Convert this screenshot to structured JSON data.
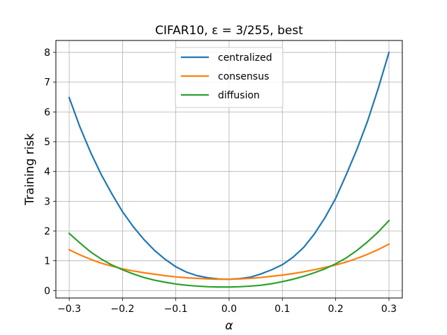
{
  "chart_data": {
    "type": "line",
    "title": "CIFAR10, ε = 3/255, best",
    "xlabel": "α",
    "ylabel": "Training risk",
    "xlim": [
      -0.325,
      0.325
    ],
    "ylim": [
      -0.25,
      8.4
    ],
    "grid": true,
    "legend_position": "top-center",
    "x_ticks": [
      -0.3,
      -0.2,
      -0.1,
      0.0,
      0.1,
      0.2,
      0.3
    ],
    "x_tick_labels": [
      "−0.3",
      "−0.2",
      "−0.1",
      "0.0",
      "0.1",
      "0.2",
      "0.3"
    ],
    "y_ticks": [
      0,
      1,
      2,
      3,
      4,
      5,
      6,
      7,
      8
    ],
    "y_tick_labels": [
      "0",
      "1",
      "2",
      "3",
      "4",
      "5",
      "6",
      "7",
      "8"
    ],
    "x": [
      -0.3,
      -0.28,
      -0.26,
      -0.24,
      -0.22,
      -0.2,
      -0.18,
      -0.16,
      -0.14,
      -0.12,
      -0.1,
      -0.08,
      -0.06,
      -0.04,
      -0.02,
      0.0,
      0.02,
      0.04,
      0.06,
      0.08,
      0.1,
      0.12,
      0.14,
      0.16,
      0.18,
      0.2,
      0.22,
      0.24,
      0.26,
      0.28,
      0.3
    ],
    "series": [
      {
        "name": "centralized",
        "color": "#1f77b4",
        "values": [
          6.48,
          5.5,
          4.65,
          3.9,
          3.25,
          2.65,
          2.15,
          1.72,
          1.35,
          1.05,
          0.8,
          0.62,
          0.5,
          0.43,
          0.39,
          0.38,
          0.4,
          0.45,
          0.56,
          0.7,
          0.87,
          1.12,
          1.45,
          1.9,
          2.45,
          3.1,
          3.9,
          4.75,
          5.7,
          6.8,
          8.0
        ]
      },
      {
        "name": "consensus",
        "color": "#ff7f0e",
        "values": [
          1.37,
          1.2,
          1.05,
          0.92,
          0.82,
          0.73,
          0.66,
          0.6,
          0.55,
          0.5,
          0.46,
          0.43,
          0.41,
          0.39,
          0.38,
          0.38,
          0.39,
          0.41,
          0.44,
          0.48,
          0.52,
          0.57,
          0.63,
          0.7,
          0.78,
          0.86,
          0.96,
          1.08,
          1.22,
          1.38,
          1.56
        ]
      },
      {
        "name": "diffusion",
        "color": "#2ca02c",
        "values": [
          1.92,
          1.6,
          1.3,
          1.06,
          0.86,
          0.7,
          0.56,
          0.44,
          0.35,
          0.28,
          0.22,
          0.18,
          0.15,
          0.13,
          0.12,
          0.12,
          0.13,
          0.15,
          0.18,
          0.23,
          0.3,
          0.38,
          0.48,
          0.6,
          0.73,
          0.9,
          1.1,
          1.35,
          1.64,
          1.97,
          2.35
        ]
      }
    ]
  }
}
